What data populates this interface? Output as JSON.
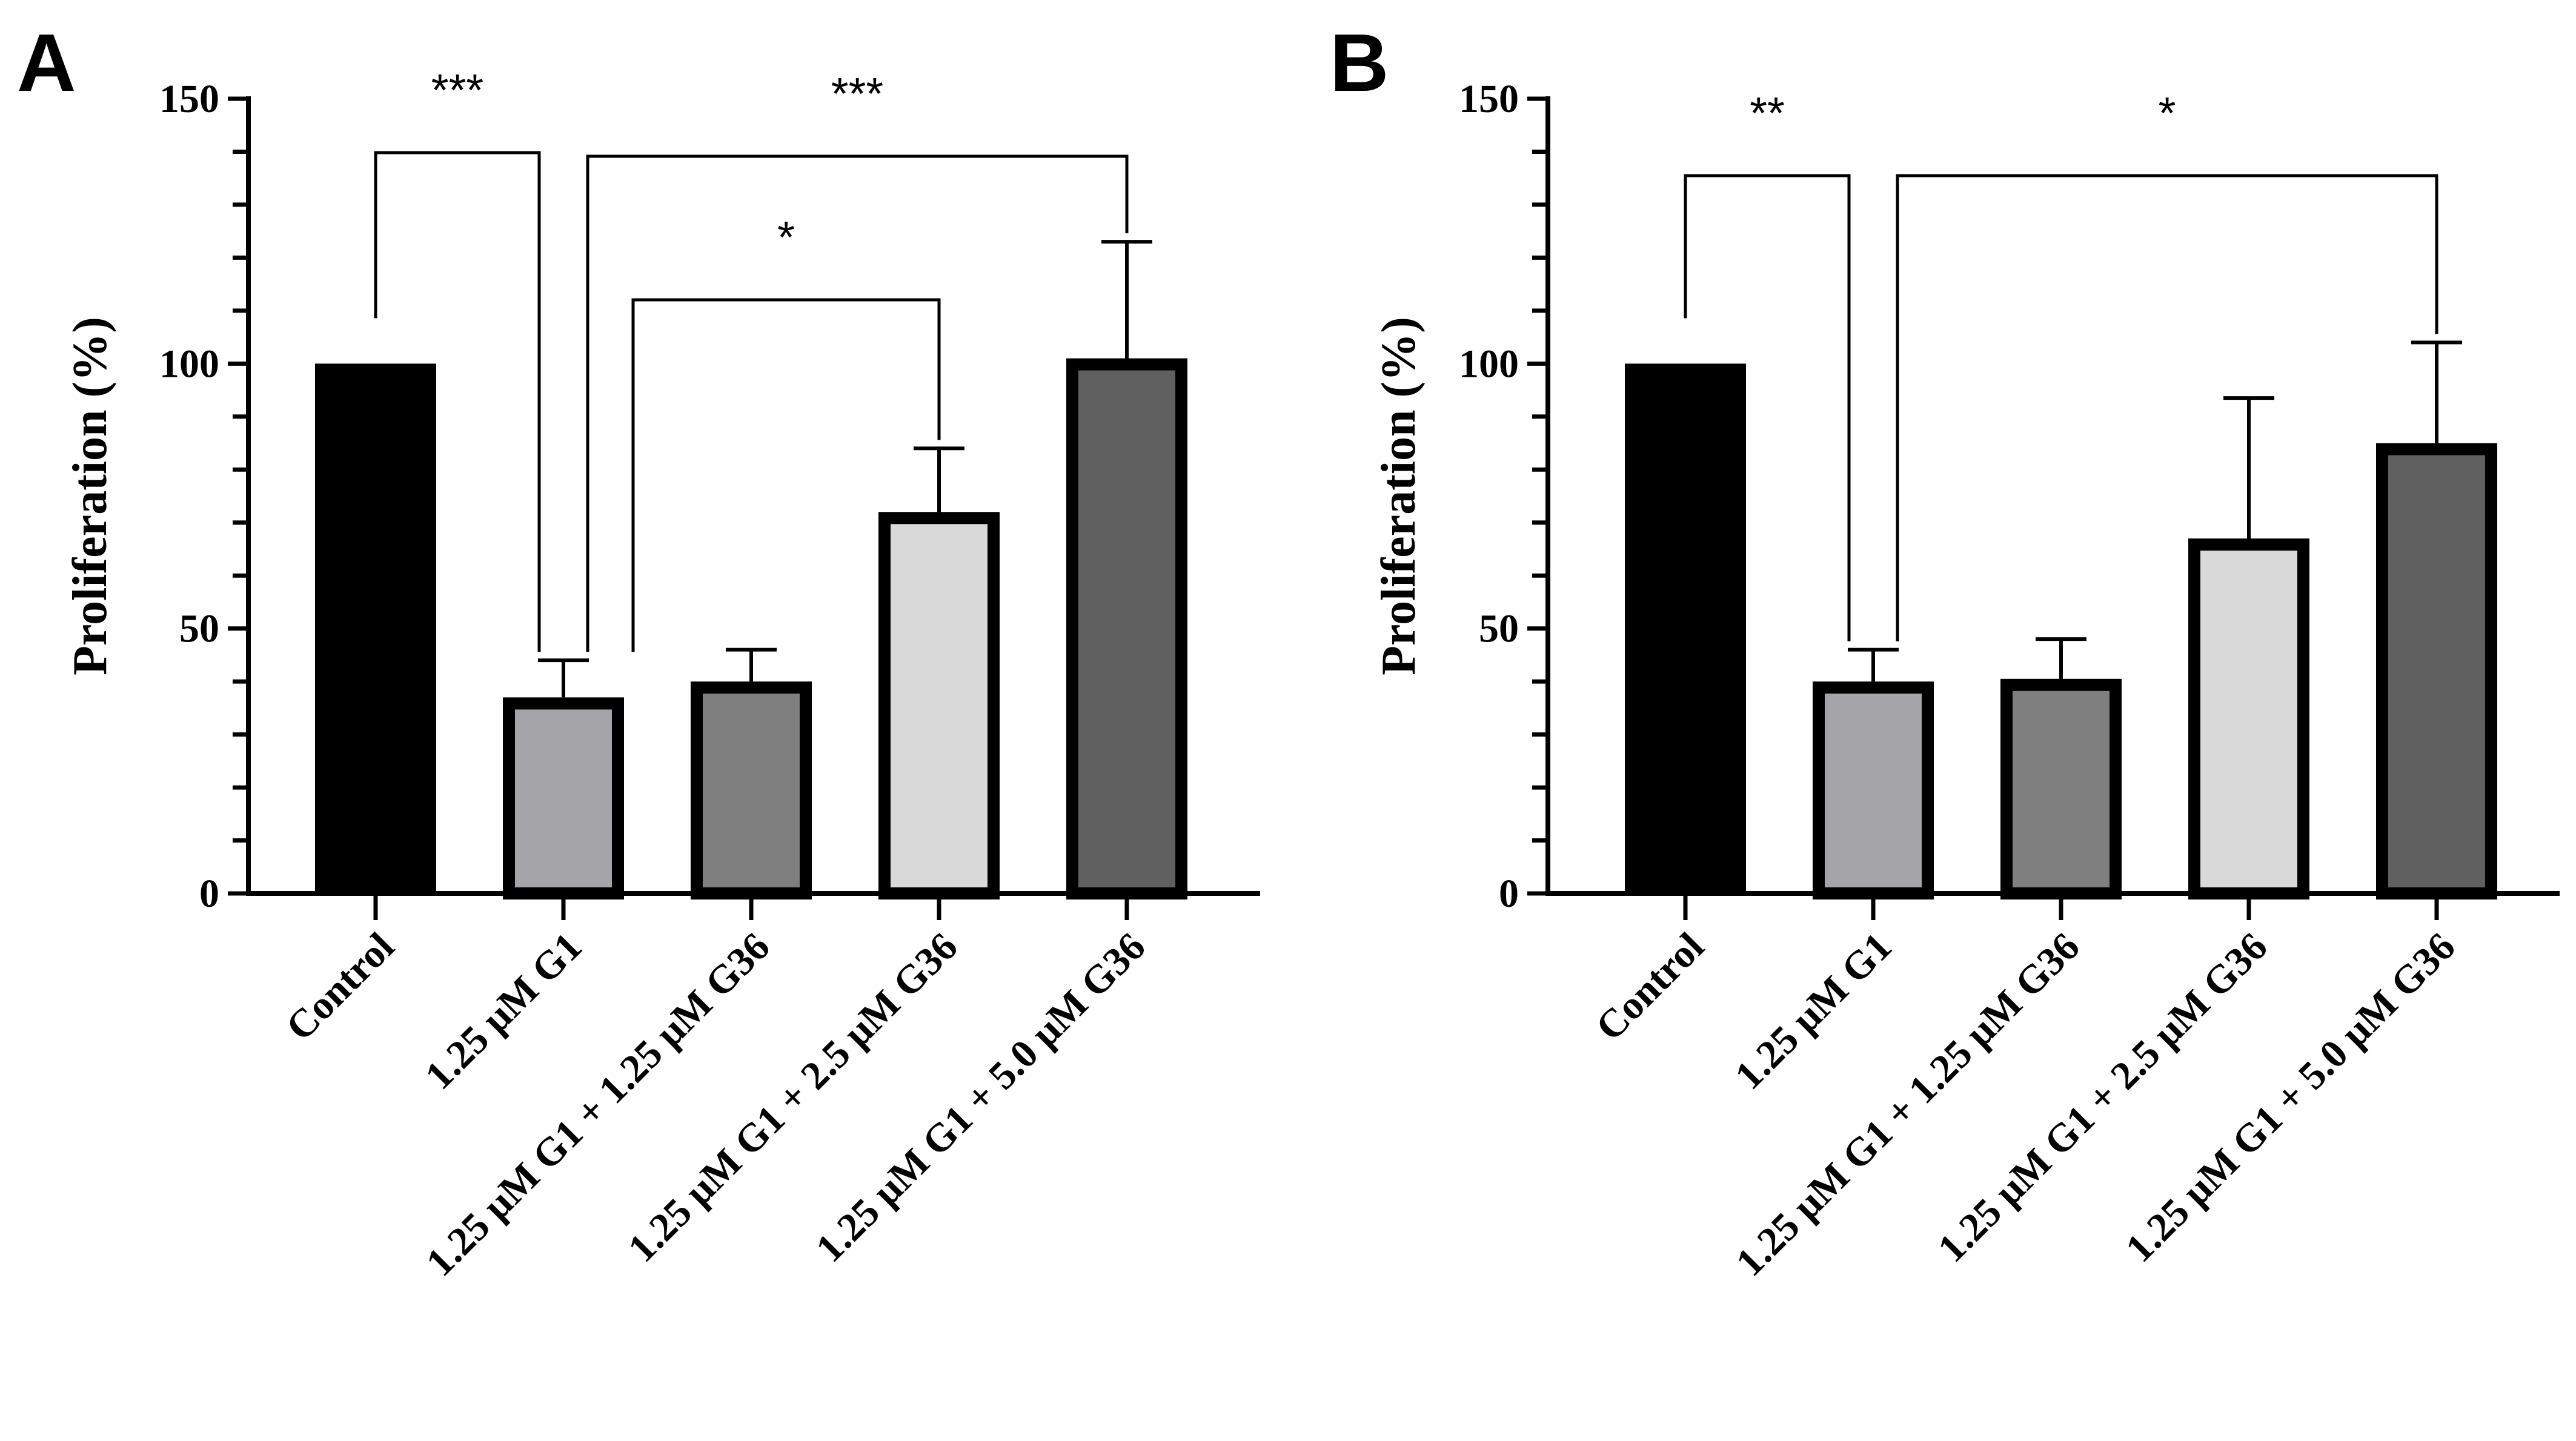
{
  "chart_data": [
    {
      "panel": "A",
      "type": "bar",
      "title": "",
      "xlabel": "",
      "ylabel": "Proliferation (%)",
      "ylim": [
        0,
        150
      ],
      "yticks": [
        0,
        50,
        100,
        150
      ],
      "grid": false,
      "categories": [
        "Control",
        "1.25 μM G1",
        "1.25 μM G1 + 1.25 μM G36",
        "1.25 μM G1 + 2.5 μM G36",
        "1.25 μM G1 + 5.0 μM G36"
      ],
      "values": [
        100,
        37,
        40,
        72,
        101
      ],
      "errors": [
        0,
        7,
        6,
        12,
        22
      ],
      "colors": [
        "#000000",
        "#a5a4a9",
        "#7f7f7f",
        "#d9d9d9",
        "#606060"
      ],
      "significance": [
        {
          "from": 0,
          "to": 1,
          "label": "***"
        },
        {
          "from": 1,
          "to": 4,
          "label": "***"
        },
        {
          "from": 1,
          "to": 3,
          "label": "*"
        }
      ]
    },
    {
      "panel": "B",
      "type": "bar",
      "title": "",
      "xlabel": "",
      "ylabel": "Proliferation (%)",
      "ylim": [
        0,
        150
      ],
      "yticks": [
        0,
        50,
        100,
        150
      ],
      "grid": false,
      "categories": [
        "Control",
        "1.25 μM G1",
        "1.25 μM G1 + 1.25 μM G36",
        "1.25 μM G1 + 2.5 μM G36",
        "1.25 μM G1 + 5.0 μM G36"
      ],
      "values": [
        100,
        40,
        40.5,
        67,
        85
      ],
      "errors": [
        0,
        6,
        7.5,
        26.5,
        19
      ],
      "colors": [
        "#000000",
        "#a5a4a9",
        "#7f7f7f",
        "#d9d9d9",
        "#606060"
      ],
      "significance": [
        {
          "from": 0,
          "to": 1,
          "label": "**"
        },
        {
          "from": 1,
          "to": 4,
          "label": "*"
        }
      ]
    }
  ]
}
